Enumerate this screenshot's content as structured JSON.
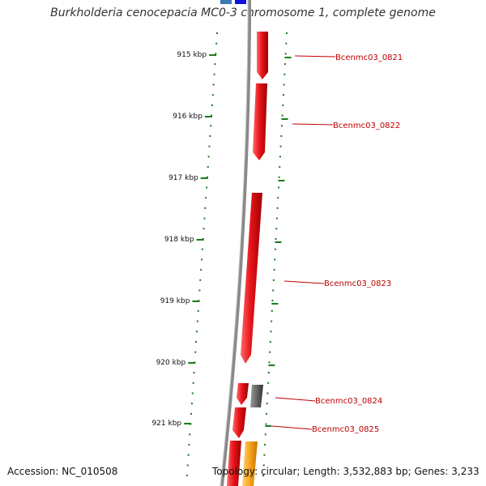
{
  "title": "Burkholderia cenocepacia MC0-3 chromosome 1, complete genome",
  "accession": "Accession: NC_010508",
  "topology": "Topology: circular; Length: 3,532,883 bp; Genes: 3,233",
  "ticks": [
    "915 kbp",
    "916 kbp",
    "917 kbp",
    "918 kbp",
    "919 kbp",
    "920 kbp",
    "921 kbp"
  ],
  "genes": [
    {
      "label": "Bcenmc03_0821"
    },
    {
      "label": "Bcenmc03_0822"
    },
    {
      "label": "Bcenmc03_0823"
    },
    {
      "label": "Bcenmc03_0824"
    },
    {
      "label": "Bcenmc03_0825"
    }
  ],
  "colors": {
    "tick": "#1a7a1a",
    "backbone": "#8a8a8a",
    "gene": "#e8141b",
    "gene_gray": "#666666",
    "gene_orange": "#f7a21b",
    "label": "#c00000"
  }
}
